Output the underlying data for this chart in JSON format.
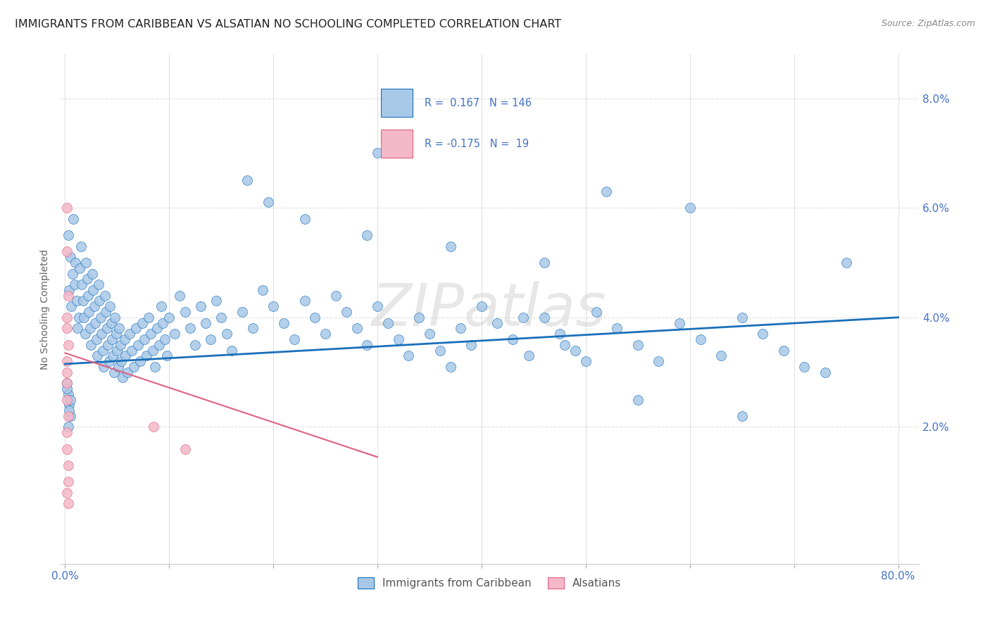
{
  "title": "IMMIGRANTS FROM CARIBBEAN VS ALSATIAN NO SCHOOLING COMPLETED CORRELATION CHART",
  "source": "Source: ZipAtlas.com",
  "ylabel": "No Schooling Completed",
  "yaxis_labels": [
    "2.0%",
    "4.0%",
    "6.0%",
    "8.0%"
  ],
  "yaxis_values": [
    0.02,
    0.04,
    0.06,
    0.08
  ],
  "xaxis_ticks": [
    0.0,
    0.1,
    0.2,
    0.3,
    0.4,
    0.5,
    0.6,
    0.7,
    0.8
  ],
  "xlim": [
    -0.005,
    0.82
  ],
  "ylim": [
    -0.005,
    0.088
  ],
  "legend1_label": "Immigrants from Caribbean",
  "legend2_label": "Alsatians",
  "r1": 0.167,
  "n1": 146,
  "r2": -0.175,
  "n2": 19,
  "blue_color": "#a8c8e8",
  "pink_color": "#f4b8c8",
  "blue_line_color": "#1a6fba",
  "pink_line_color": "#e06080",
  "axis_label_color": "#4472c4",
  "blue_line": [
    [
      0.0,
      0.0315
    ],
    [
      0.8,
      0.04
    ]
  ],
  "pink_line": [
    [
      0.0,
      0.0335
    ],
    [
      0.3,
      0.0145
    ]
  ],
  "blue_scatter": [
    [
      0.003,
      0.055
    ],
    [
      0.005,
      0.051
    ],
    [
      0.007,
      0.048
    ],
    [
      0.004,
      0.045
    ],
    [
      0.006,
      0.042
    ],
    [
      0.008,
      0.058
    ],
    [
      0.01,
      0.05
    ],
    [
      0.009,
      0.046
    ],
    [
      0.011,
      0.043
    ],
    [
      0.013,
      0.04
    ],
    [
      0.012,
      0.038
    ],
    [
      0.015,
      0.053
    ],
    [
      0.014,
      0.049
    ],
    [
      0.016,
      0.046
    ],
    [
      0.017,
      0.043
    ],
    [
      0.018,
      0.04
    ],
    [
      0.019,
      0.037
    ],
    [
      0.02,
      0.05
    ],
    [
      0.021,
      0.047
    ],
    [
      0.022,
      0.044
    ],
    [
      0.023,
      0.041
    ],
    [
      0.024,
      0.038
    ],
    [
      0.025,
      0.035
    ],
    [
      0.026,
      0.048
    ],
    [
      0.027,
      0.045
    ],
    [
      0.028,
      0.042
    ],
    [
      0.029,
      0.039
    ],
    [
      0.03,
      0.036
    ],
    [
      0.031,
      0.033
    ],
    [
      0.032,
      0.046
    ],
    [
      0.033,
      0.043
    ],
    [
      0.034,
      0.04
    ],
    [
      0.035,
      0.037
    ],
    [
      0.036,
      0.034
    ],
    [
      0.037,
      0.031
    ],
    [
      0.038,
      0.044
    ],
    [
      0.039,
      0.041
    ],
    [
      0.04,
      0.038
    ],
    [
      0.041,
      0.035
    ],
    [
      0.042,
      0.032
    ],
    [
      0.043,
      0.042
    ],
    [
      0.044,
      0.039
    ],
    [
      0.045,
      0.036
    ],
    [
      0.046,
      0.033
    ],
    [
      0.047,
      0.03
    ],
    [
      0.048,
      0.04
    ],
    [
      0.049,
      0.037
    ],
    [
      0.05,
      0.034
    ],
    [
      0.051,
      0.031
    ],
    [
      0.052,
      0.038
    ],
    [
      0.053,
      0.035
    ],
    [
      0.054,
      0.032
    ],
    [
      0.055,
      0.029
    ],
    [
      0.057,
      0.036
    ],
    [
      0.058,
      0.033
    ],
    [
      0.06,
      0.03
    ],
    [
      0.062,
      0.037
    ],
    [
      0.064,
      0.034
    ],
    [
      0.066,
      0.031
    ],
    [
      0.068,
      0.038
    ],
    [
      0.07,
      0.035
    ],
    [
      0.072,
      0.032
    ],
    [
      0.074,
      0.039
    ],
    [
      0.076,
      0.036
    ],
    [
      0.078,
      0.033
    ],
    [
      0.08,
      0.04
    ],
    [
      0.082,
      0.037
    ],
    [
      0.084,
      0.034
    ],
    [
      0.086,
      0.031
    ],
    [
      0.088,
      0.038
    ],
    [
      0.09,
      0.035
    ],
    [
      0.092,
      0.042
    ],
    [
      0.094,
      0.039
    ],
    [
      0.096,
      0.036
    ],
    [
      0.098,
      0.033
    ],
    [
      0.1,
      0.04
    ],
    [
      0.105,
      0.037
    ],
    [
      0.11,
      0.044
    ],
    [
      0.115,
      0.041
    ],
    [
      0.12,
      0.038
    ],
    [
      0.125,
      0.035
    ],
    [
      0.13,
      0.042
    ],
    [
      0.135,
      0.039
    ],
    [
      0.14,
      0.036
    ],
    [
      0.145,
      0.043
    ],
    [
      0.15,
      0.04
    ],
    [
      0.155,
      0.037
    ],
    [
      0.16,
      0.034
    ],
    [
      0.17,
      0.041
    ],
    [
      0.18,
      0.038
    ],
    [
      0.19,
      0.045
    ],
    [
      0.2,
      0.042
    ],
    [
      0.21,
      0.039
    ],
    [
      0.22,
      0.036
    ],
    [
      0.23,
      0.043
    ],
    [
      0.24,
      0.04
    ],
    [
      0.25,
      0.037
    ],
    [
      0.26,
      0.044
    ],
    [
      0.27,
      0.041
    ],
    [
      0.28,
      0.038
    ],
    [
      0.29,
      0.035
    ],
    [
      0.3,
      0.042
    ],
    [
      0.31,
      0.039
    ],
    [
      0.32,
      0.036
    ],
    [
      0.33,
      0.033
    ],
    [
      0.34,
      0.04
    ],
    [
      0.35,
      0.037
    ],
    [
      0.36,
      0.034
    ],
    [
      0.37,
      0.031
    ],
    [
      0.38,
      0.038
    ],
    [
      0.39,
      0.035
    ],
    [
      0.4,
      0.042
    ],
    [
      0.415,
      0.039
    ],
    [
      0.43,
      0.036
    ],
    [
      0.445,
      0.033
    ],
    [
      0.46,
      0.04
    ],
    [
      0.475,
      0.037
    ],
    [
      0.49,
      0.034
    ],
    [
      0.51,
      0.041
    ],
    [
      0.53,
      0.038
    ],
    [
      0.55,
      0.035
    ],
    [
      0.57,
      0.032
    ],
    [
      0.59,
      0.039
    ],
    [
      0.61,
      0.036
    ],
    [
      0.63,
      0.033
    ],
    [
      0.65,
      0.04
    ],
    [
      0.67,
      0.037
    ],
    [
      0.69,
      0.034
    ],
    [
      0.71,
      0.031
    ],
    [
      0.52,
      0.063
    ],
    [
      0.3,
      0.07
    ],
    [
      0.002,
      0.028
    ],
    [
      0.003,
      0.026
    ],
    [
      0.004,
      0.024
    ],
    [
      0.005,
      0.022
    ],
    [
      0.003,
      0.02
    ],
    [
      0.002,
      0.027
    ],
    [
      0.004,
      0.023
    ],
    [
      0.005,
      0.025
    ],
    [
      0.6,
      0.06
    ],
    [
      0.75,
      0.05
    ],
    [
      0.44,
      0.04
    ],
    [
      0.48,
      0.035
    ],
    [
      0.65,
      0.022
    ],
    [
      0.73,
      0.03
    ],
    [
      0.55,
      0.025
    ],
    [
      0.5,
      0.032
    ],
    [
      0.46,
      0.05
    ],
    [
      0.37,
      0.053
    ],
    [
      0.29,
      0.055
    ],
    [
      0.23,
      0.058
    ],
    [
      0.195,
      0.061
    ],
    [
      0.175,
      0.065
    ]
  ],
  "pink_scatter": [
    [
      0.002,
      0.06
    ],
    [
      0.002,
      0.052
    ],
    [
      0.003,
      0.044
    ],
    [
      0.002,
      0.038
    ],
    [
      0.002,
      0.032
    ],
    [
      0.002,
      0.028
    ],
    [
      0.002,
      0.025
    ],
    [
      0.003,
      0.022
    ],
    [
      0.002,
      0.019
    ],
    [
      0.002,
      0.016
    ],
    [
      0.003,
      0.013
    ],
    [
      0.003,
      0.01
    ],
    [
      0.002,
      0.008
    ],
    [
      0.003,
      0.006
    ],
    [
      0.085,
      0.02
    ],
    [
      0.115,
      0.016
    ],
    [
      0.002,
      0.04
    ],
    [
      0.003,
      0.035
    ],
    [
      0.002,
      0.03
    ]
  ]
}
